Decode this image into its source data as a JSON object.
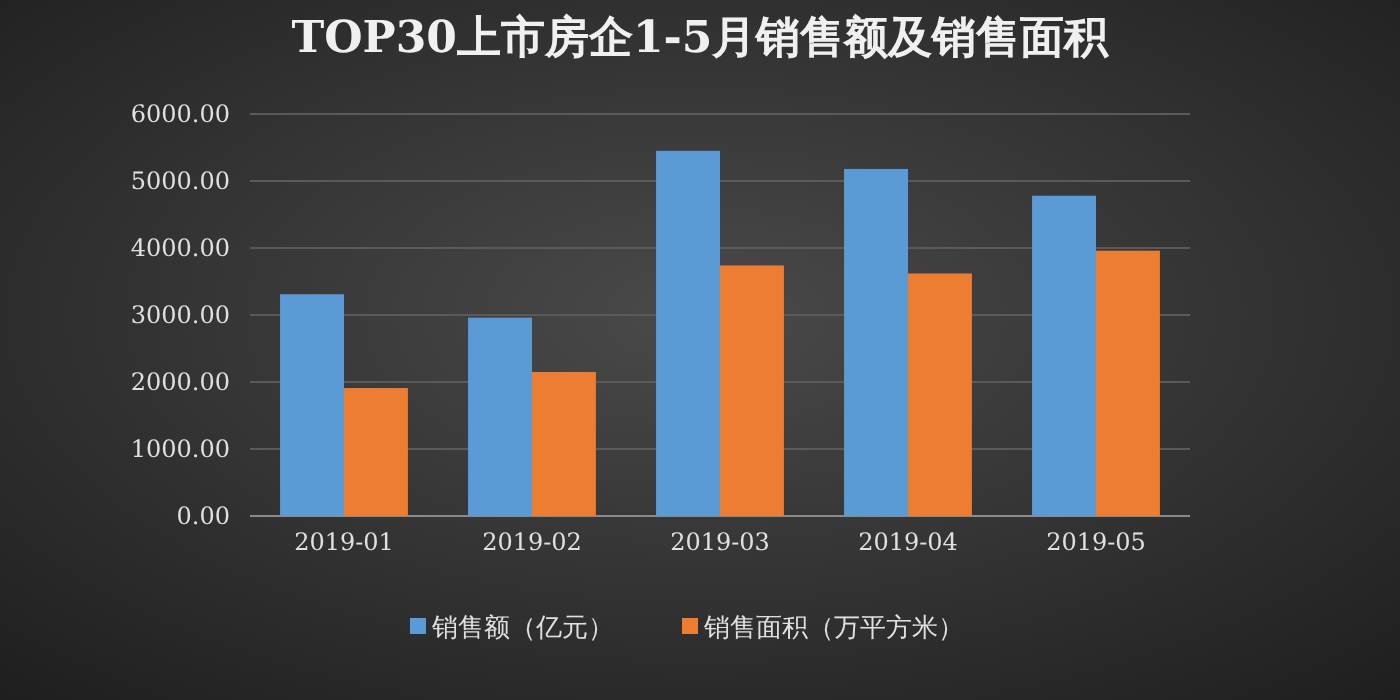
{
  "chart_data": {
    "type": "bar",
    "title": "TOP30上市房企1-5月销售额及销售面积",
    "categories": [
      "2019-01",
      "2019-02",
      "2019-03",
      "2019-04",
      "2019-05"
    ],
    "series": [
      {
        "name": "销售额（亿元）",
        "color": "#5b9bd5",
        "values": [
          3310,
          2960,
          5450,
          5180,
          4780
        ]
      },
      {
        "name": "销售面积（万平方米）",
        "color": "#ed7d31",
        "values": [
          1910,
          2150,
          3740,
          3620,
          3960
        ]
      }
    ],
    "ylim": [
      0,
      6000
    ],
    "yticks": [
      {
        "value": 0,
        "label": "0.00"
      },
      {
        "value": 1000,
        "label": "1000.00"
      },
      {
        "value": 2000,
        "label": "2000.00"
      },
      {
        "value": 3000,
        "label": "3000.00"
      },
      {
        "value": 4000,
        "label": "4000.00"
      },
      {
        "value": 5000,
        "label": "5000.00"
      },
      {
        "value": 6000,
        "label": "6000.00"
      }
    ],
    "grid": "y",
    "legend": "bottom"
  }
}
